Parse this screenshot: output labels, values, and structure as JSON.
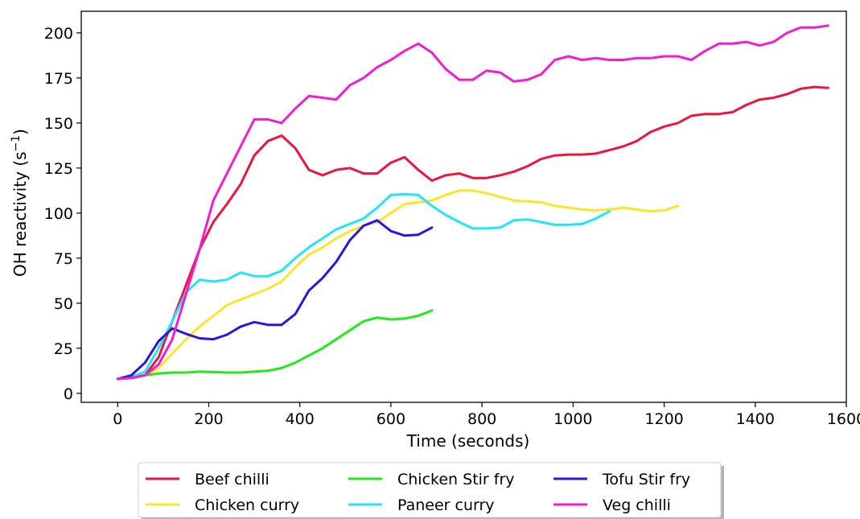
{
  "chart_data": {
    "type": "line",
    "title": "",
    "xlabel": "Time (seconds)",
    "ylabel_main": "OH reactivity (s",
    "ylabel_sup": "−1",
    "ylabel_close": ")",
    "xlim": [
      -80,
      1600
    ],
    "ylim": [
      -5,
      212
    ],
    "xticks": [
      0,
      200,
      400,
      600,
      800,
      1000,
      1200,
      1400,
      1600
    ],
    "yticks": [
      0,
      25,
      50,
      75,
      100,
      125,
      150,
      175,
      200
    ],
    "xtick_labels": [
      "0",
      "200",
      "400",
      "600",
      "800",
      "1000",
      "1200",
      "1400",
      "1600"
    ],
    "ytick_labels": [
      "0",
      "25",
      "50",
      "75",
      "100",
      "125",
      "150",
      "175",
      "200"
    ],
    "grid": false,
    "legend_placement": "bottom-center outside",
    "series": [
      {
        "name": "Beef chilli",
        "color": "#e8173b",
        "x": [
          0,
          30,
          60,
          90,
          120,
          150,
          180,
          210,
          240,
          270,
          300,
          330,
          360,
          390,
          420,
          450,
          480,
          510,
          540,
          570,
          600,
          630,
          660,
          690,
          720,
          750,
          780,
          810,
          840,
          870,
          900,
          930,
          960,
          990,
          1020,
          1050,
          1080,
          1110,
          1140,
          1170,
          1200,
          1230,
          1260,
          1290,
          1320,
          1350,
          1380,
          1410,
          1440,
          1470,
          1500,
          1530,
          1560
        ],
        "y": [
          8,
          8.5,
          10,
          20,
          40,
          60,
          80,
          95,
          105,
          116,
          132,
          140,
          143,
          136,
          124,
          121,
          124,
          125,
          122,
          122,
          128,
          131,
          124,
          118,
          121,
          122,
          119.5,
          119.5,
          121,
          123,
          126,
          130,
          132,
          132.5,
          132.5,
          133,
          135,
          137,
          140,
          145,
          148,
          150,
          154,
          155,
          155,
          156,
          160,
          163,
          164,
          166,
          169,
          170,
          169.5
        ]
      },
      {
        "name": "Chicken curry",
        "color": "#fde42d",
        "x": [
          0,
          30,
          60,
          90,
          120,
          150,
          180,
          210,
          240,
          270,
          300,
          330,
          360,
          390,
          420,
          450,
          480,
          510,
          540,
          570,
          600,
          630,
          660,
          690,
          720,
          750,
          780,
          810,
          840,
          870,
          900,
          930,
          960,
          990,
          1020,
          1050,
          1080,
          1110,
          1140,
          1170,
          1200,
          1230
        ],
        "y": [
          8,
          8.5,
          10,
          14,
          22,
          30,
          37,
          43,
          49,
          52,
          55,
          58,
          62,
          70,
          77,
          81,
          86,
          90,
          93,
          95,
          100,
          105,
          106,
          107,
          110,
          112.5,
          112.5,
          111,
          109,
          107,
          106.5,
          106,
          104,
          103,
          102,
          101.5,
          102,
          103,
          102,
          101,
          101.5,
          104
        ]
      },
      {
        "name": "Chicken Stir fry",
        "color": "#22e81c",
        "x": [
          0,
          30,
          60,
          90,
          120,
          150,
          180,
          210,
          240,
          270,
          300,
          330,
          360,
          390,
          420,
          450,
          480,
          510,
          540,
          570,
          600,
          630,
          660,
          690
        ],
        "y": [
          8,
          9,
          10,
          11,
          11.5,
          11.5,
          12,
          11.8,
          11.5,
          11.5,
          12,
          12.5,
          14,
          17,
          21,
          25,
          30,
          35,
          40,
          42,
          41,
          41.5,
          43,
          46
        ]
      },
      {
        "name": "Paneer curry",
        "color": "#26e3f5",
        "x": [
          0,
          30,
          60,
          90,
          120,
          150,
          180,
          210,
          240,
          270,
          300,
          330,
          360,
          390,
          420,
          450,
          480,
          510,
          540,
          570,
          600,
          630,
          660,
          690,
          720,
          750,
          780,
          810,
          840,
          870,
          900,
          930,
          960,
          990,
          1020,
          1050,
          1080
        ],
        "y": [
          8,
          9,
          12,
          25,
          40,
          56,
          63,
          62,
          63,
          67,
          65,
          65,
          68,
          75,
          81,
          86,
          91,
          94,
          97,
          103,
          110,
          110.5,
          110,
          104,
          99,
          95,
          91.5,
          91.5,
          92,
          96,
          96.5,
          95,
          93.5,
          93.5,
          94,
          97,
          101
        ]
      },
      {
        "name": "Tofu Stir fry",
        "color": "#2a16e0",
        "x": [
          0,
          30,
          60,
          90,
          120,
          150,
          180,
          210,
          240,
          270,
          300,
          330,
          360,
          390,
          420,
          450,
          480,
          510,
          540,
          570,
          600,
          630,
          660,
          690
        ],
        "y": [
          8,
          10,
          17,
          29,
          36,
          33,
          30.5,
          30,
          32.5,
          37,
          39.5,
          38,
          38,
          44,
          57,
          64,
          73,
          85,
          93,
          96,
          90,
          87.5,
          88,
          92
        ]
      },
      {
        "name": "Veg chilli",
        "color": "#f21dd2",
        "x": [
          0,
          30,
          60,
          90,
          120,
          150,
          180,
          210,
          240,
          270,
          300,
          330,
          360,
          390,
          420,
          450,
          480,
          510,
          540,
          570,
          600,
          630,
          660,
          690,
          720,
          750,
          780,
          810,
          840,
          870,
          900,
          930,
          960,
          990,
          1020,
          1050,
          1080,
          1110,
          1140,
          1170,
          1200,
          1230,
          1260,
          1290,
          1320,
          1350,
          1380,
          1410,
          1440,
          1470,
          1500,
          1530,
          1560
        ],
        "y": [
          8,
          8.5,
          10,
          16,
          30,
          55,
          80,
          107,
          122,
          137,
          152,
          152,
          150,
          158,
          165,
          164,
          163,
          171,
          175,
          181,
          185,
          190,
          194,
          189,
          180,
          174,
          174,
          179,
          178,
          173,
          174,
          177,
          185,
          187,
          185,
          186,
          185,
          185,
          186,
          186,
          187,
          187,
          185,
          190,
          194,
          194,
          195,
          193,
          195,
          200,
          203,
          203,
          204
        ]
      }
    ]
  }
}
